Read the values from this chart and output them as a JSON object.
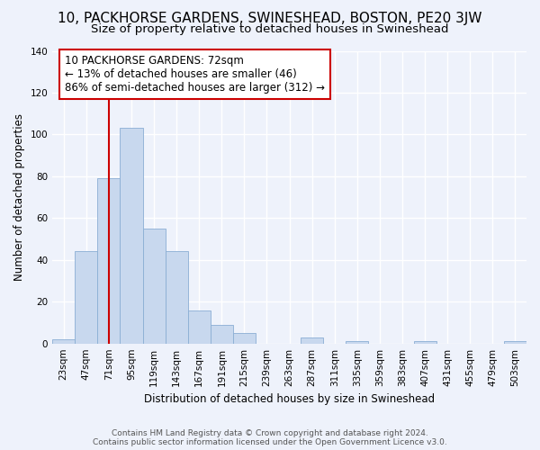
{
  "title": "10, PACKHORSE GARDENS, SWINESHEAD, BOSTON, PE20 3JW",
  "subtitle": "Size of property relative to detached houses in Swineshead",
  "xlabel": "Distribution of detached houses by size in Swineshead",
  "ylabel": "Number of detached properties",
  "bar_labels": [
    "23sqm",
    "47sqm",
    "71sqm",
    "95sqm",
    "119sqm",
    "143sqm",
    "167sqm",
    "191sqm",
    "215sqm",
    "239sqm",
    "263sqm",
    "287sqm",
    "311sqm",
    "335sqm",
    "359sqm",
    "383sqm",
    "407sqm",
    "431sqm",
    "455sqm",
    "479sqm",
    "503sqm"
  ],
  "bar_values": [
    2,
    44,
    79,
    103,
    55,
    44,
    16,
    9,
    5,
    0,
    0,
    3,
    0,
    1,
    0,
    0,
    1,
    0,
    0,
    0,
    1
  ],
  "bar_color": "#c8d8ee",
  "bar_edge_color": "#8aaed4",
  "vline_x": 2,
  "vline_color": "#cc0000",
  "annotation_text": "10 PACKHORSE GARDENS: 72sqm\n← 13% of detached houses are smaller (46)\n86% of semi-detached houses are larger (312) →",
  "annotation_box_color": "#ffffff",
  "annotation_box_edge_color": "#cc0000",
  "ylim": [
    0,
    140
  ],
  "yticks": [
    0,
    20,
    40,
    60,
    80,
    100,
    120,
    140
  ],
  "footer_text": "Contains HM Land Registry data © Crown copyright and database right 2024.\nContains public sector information licensed under the Open Government Licence v3.0.",
  "bg_color": "#eef2fb",
  "grid_color": "#ffffff",
  "title_fontsize": 11,
  "subtitle_fontsize": 9.5,
  "axis_label_fontsize": 8.5,
  "tick_fontsize": 7.5,
  "annotation_fontsize": 8.5,
  "footer_fontsize": 6.5
}
